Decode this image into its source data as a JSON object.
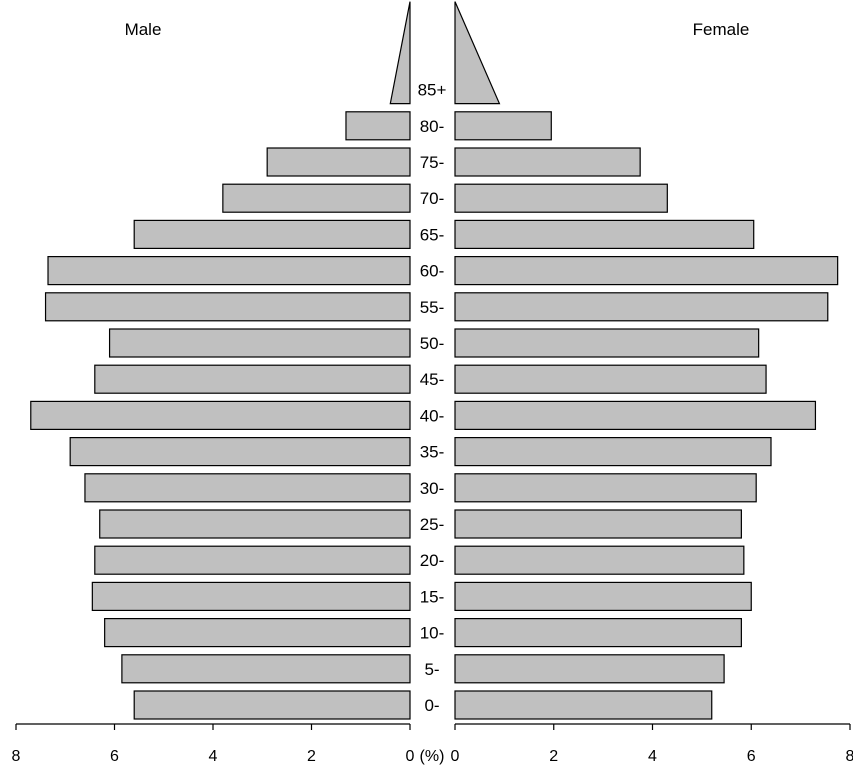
{
  "chart_data": {
    "type": "bar",
    "orientation": "horizontal",
    "layout": "population-pyramid",
    "categories": [
      "0-",
      "5-",
      "10-",
      "15-",
      "20-",
      "25-",
      "30-",
      "35-",
      "40-",
      "45-",
      "50-",
      "55-",
      "60-",
      "65-",
      "70-",
      "75-",
      "80-",
      "85+"
    ],
    "series": [
      {
        "name": "Male",
        "values": [
          5.6,
          5.85,
          6.2,
          6.45,
          6.4,
          6.3,
          6.6,
          6.9,
          7.7,
          6.4,
          6.1,
          7.4,
          7.35,
          5.6,
          3.8,
          2.9,
          1.3,
          0.4
        ]
      },
      {
        "name": "Female",
        "values": [
          5.2,
          5.45,
          5.8,
          6.0,
          5.85,
          5.8,
          6.1,
          6.4,
          7.3,
          6.3,
          6.15,
          7.55,
          7.75,
          6.05,
          4.3,
          3.75,
          1.95,
          0.9
        ]
      }
    ],
    "x_ticks": [
      "8",
      "6",
      "4",
      "2",
      "0",
      "0",
      "2",
      "4",
      "6",
      "8"
    ],
    "x_unit_label": "(%)",
    "xlim": [
      0,
      8
    ],
    "bar_color": "#c0c0c0",
    "edge_color": "#000000",
    "grid": false
  }
}
